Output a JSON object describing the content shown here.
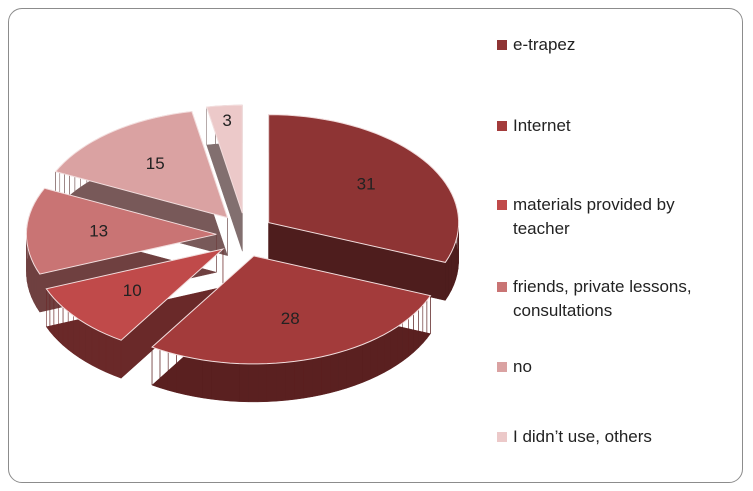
{
  "chart_data": {
    "type": "pie3d",
    "categories": [
      "e-trapez",
      "Internet",
      "materials provided by teacher",
      "friends, private lessons, consultations",
      "no",
      "I didn’t use, others"
    ],
    "values": [
      31,
      28,
      10,
      13,
      15,
      3
    ],
    "colors": [
      "#8e3434",
      "#a33b3b",
      "#c04a4a",
      "#c97474",
      "#daa2a2",
      "#ecc9c9"
    ],
    "legend": "right"
  }
}
